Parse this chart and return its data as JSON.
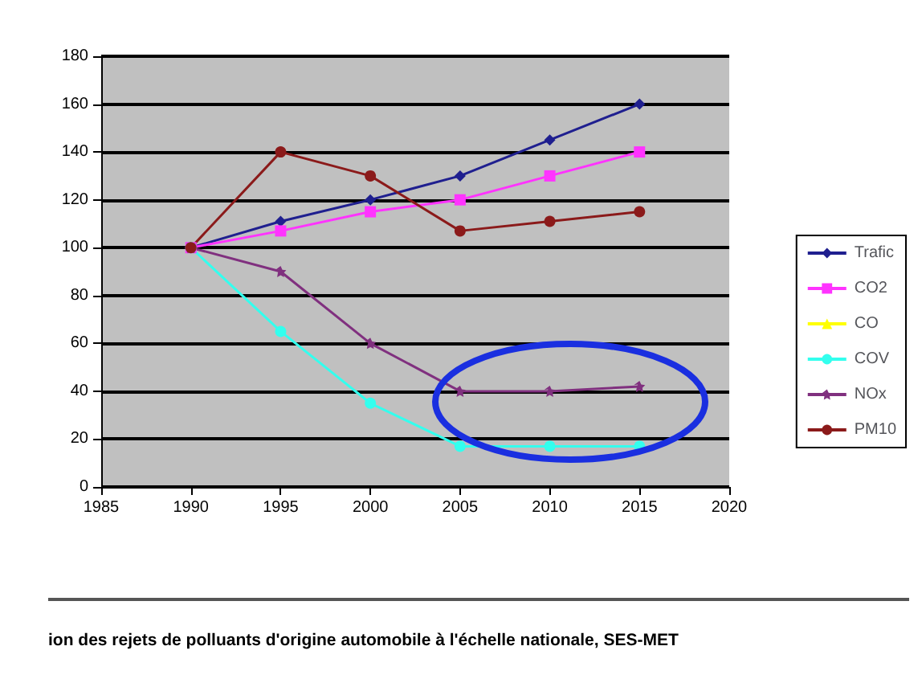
{
  "chart_data": {
    "type": "line",
    "x": [
      1990,
      1995,
      2000,
      2005,
      2010,
      2015
    ],
    "series": [
      {
        "name": "Trafic",
        "color": "#1f1f8f",
        "marker": "diamond",
        "values": [
          100,
          111,
          120,
          130,
          145,
          160
        ]
      },
      {
        "name": "CO2",
        "color": "#ff33ff",
        "marker": "square",
        "values": [
          100,
          107,
          115,
          120,
          130,
          140
        ]
      },
      {
        "name": "CO",
        "color": "#ffff00",
        "marker": "triangle",
        "values": [
          null,
          null,
          null,
          null,
          null,
          null
        ]
      },
      {
        "name": "COV",
        "color": "#33ffee",
        "marker": "circle",
        "values": [
          100,
          65,
          35,
          17,
          17,
          17
        ]
      },
      {
        "name": "NOx",
        "color": "#80307f",
        "marker": "star",
        "values": [
          100,
          90,
          60,
          40,
          40,
          42
        ]
      },
      {
        "name": "PM10",
        "color": "#8b1a1a",
        "marker": "circle",
        "values": [
          100,
          140,
          130,
          107,
          111,
          115
        ]
      }
    ],
    "xlim": [
      1985,
      2020
    ],
    "xticks": [
      1985,
      1990,
      1995,
      2000,
      2005,
      2010,
      2015,
      2020
    ],
    "ylim": [
      0,
      180
    ],
    "yticks": [
      0,
      20,
      40,
      60,
      80,
      100,
      120,
      140,
      160,
      180
    ],
    "grid": "y",
    "legend": "right",
    "annotations": [
      "ion des rejets de polluants d'origine automobile à l'échelle nationale, SES-MET"
    ]
  }
}
